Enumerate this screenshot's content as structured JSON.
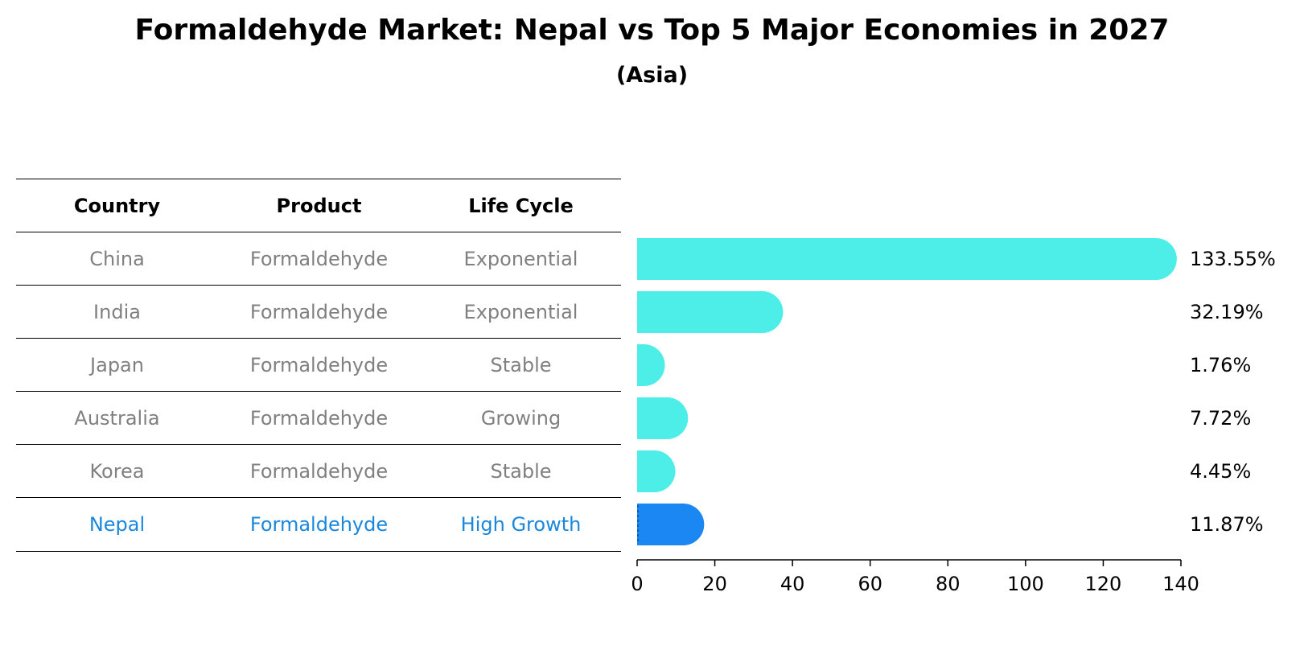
{
  "title": "Formaldehyde Market: Nepal vs Top 5 Major Economies in 2027",
  "subtitle": "(Asia)",
  "table": {
    "headers": [
      "Country",
      "Product",
      "Life Cycle"
    ],
    "rows": [
      {
        "country": "China",
        "product": "Formaldehyde",
        "life_cycle": "Exponential"
      },
      {
        "country": "India",
        "product": "Formaldehyde",
        "life_cycle": "Exponential"
      },
      {
        "country": "Japan",
        "product": "Formaldehyde",
        "life_cycle": "Stable"
      },
      {
        "country": "Australia",
        "product": "Formaldehyde",
        "life_cycle": "Growing"
      },
      {
        "country": "Korea",
        "product": "Formaldehyde",
        "life_cycle": "Stable"
      },
      {
        "country": "Nepal",
        "product": "Formaldehyde",
        "life_cycle": "High Growth"
      }
    ]
  },
  "colors": {
    "bar": "#4deee8",
    "highlight_bar": "#1a87f2",
    "highlight_text": "#1a87dd",
    "muted_text": "#808080"
  },
  "chart_data": {
    "type": "bar",
    "orientation": "horizontal",
    "title": "Formaldehyde Market: Nepal vs Top 5 Major Economies in 2027",
    "subtitle": "(Asia)",
    "categories": [
      "China",
      "India",
      "Japan",
      "Australia",
      "Korea",
      "Nepal"
    ],
    "values": [
      133.55,
      32.19,
      1.76,
      7.72,
      4.45,
      11.87
    ],
    "data_labels": [
      "133.55%",
      "32.19%",
      "1.76%",
      "7.72%",
      "4.45%",
      "11.87%"
    ],
    "highlight": "Nepal",
    "xlim": [
      0,
      140
    ],
    "xticks": [
      0,
      20,
      40,
      60,
      80,
      100,
      120,
      140
    ],
    "xlabel": "",
    "ylabel": "",
    "grid": false
  }
}
